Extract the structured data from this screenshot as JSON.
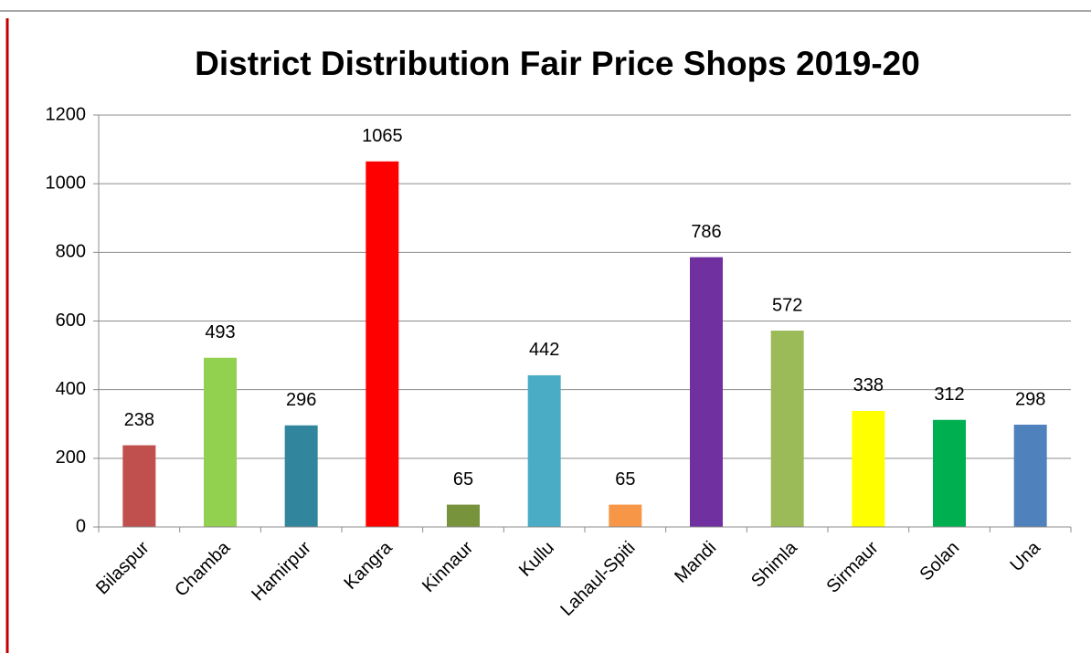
{
  "chart_data": {
    "type": "bar",
    "title": "District Distribution Fair Price Shops 2019-20",
    "categories": [
      "Bilaspur",
      "Chamba",
      "Hamirpur",
      "Kangra",
      "Kinnaur",
      "Kullu",
      "Lahaul-Spiti",
      "Mandi",
      "Shimla",
      "Sirmaur",
      "Solan",
      "Una"
    ],
    "values": [
      238,
      493,
      296,
      1065,
      65,
      442,
      65,
      786,
      572,
      338,
      312,
      298
    ],
    "colors": [
      "#c0504d",
      "#92d050",
      "#31859c",
      "#ff0000",
      "#77933c",
      "#4bacc6",
      "#f79646",
      "#7030a0",
      "#9bbb59",
      "#ffff00",
      "#00b050",
      "#4f81bd"
    ],
    "ylim": [
      0,
      1200
    ],
    "yticks": [
      0,
      200,
      400,
      600,
      800,
      1000,
      1200
    ],
    "grid": true
  }
}
